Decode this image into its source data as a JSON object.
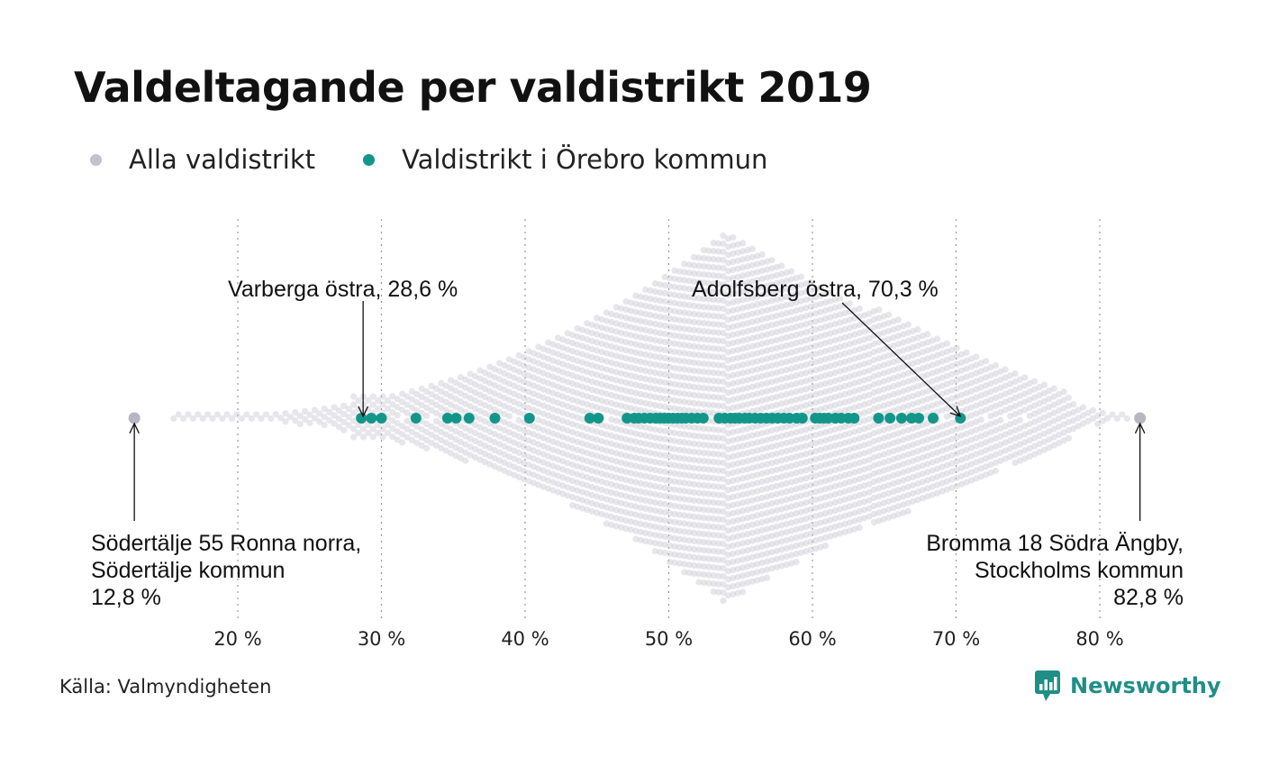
{
  "chart_data": {
    "type": "scatter",
    "title": "Valdeltagande per valdistrikt 2019",
    "xlabel": "",
    "ylabel": "",
    "xlim": [
      12,
      84
    ],
    "x_ticks": [
      20,
      30,
      40,
      50,
      60,
      70,
      80
    ],
    "x_tick_labels": [
      "20 %",
      "30 %",
      "40 %",
      "50 %",
      "60 %",
      "70 %",
      "80 %"
    ],
    "legend_position": "top-left",
    "grid": "vertical dotted",
    "series": [
      {
        "name": "Alla valdistrikt",
        "color": "#c8c7d2",
        "distribution_peak": 54,
        "min": 12.8,
        "max": 82.8
      },
      {
        "name": "Valdistrikt i Örebro kommun",
        "color": "#13968a",
        "values": [
          28.6,
          29.3,
          30.0,
          32.4,
          34.6,
          35.2,
          36.1,
          37.9,
          40.3,
          44.5,
          45.1,
          47.1,
          47.6,
          47.9,
          48.3,
          48.7,
          49.1,
          49.4,
          49.7,
          50.0,
          50.3,
          50.6,
          50.9,
          51.2,
          51.6,
          52.0,
          52.4,
          53.5,
          53.9,
          54.3,
          54.6,
          54.9,
          55.3,
          55.6,
          56.0,
          56.4,
          56.8,
          57.2,
          57.6,
          58.0,
          58.4,
          58.9,
          59.3,
          60.2,
          60.5,
          60.8,
          61.1,
          61.6,
          62.0,
          62.5,
          62.9,
          64.6,
          65.4,
          66.2,
          66.9,
          67.4,
          68.4,
          70.3
        ]
      }
    ],
    "annotations": [
      {
        "text": "Varberga östra, 28,6 %",
        "value": 28.6
      },
      {
        "text": "Adolfsberg östra, 70,3 %",
        "value": 70.3
      },
      {
        "lines": [
          "Södertälje 55 Ronna norra,",
          "Södertälje kommun",
          "12,8 %"
        ],
        "value": 12.8
      },
      {
        "lines": [
          "Bromma 18 Södra Ängby,",
          "Stockholms kommun",
          "82,8 %"
        ],
        "value": 82.8
      }
    ]
  },
  "footer": {
    "source": "Källa: Valmyndigheten",
    "brand": "Newsworthy",
    "brand_icon": "newsworthy-logo-icon",
    "brand_color": "#1f8f86"
  }
}
